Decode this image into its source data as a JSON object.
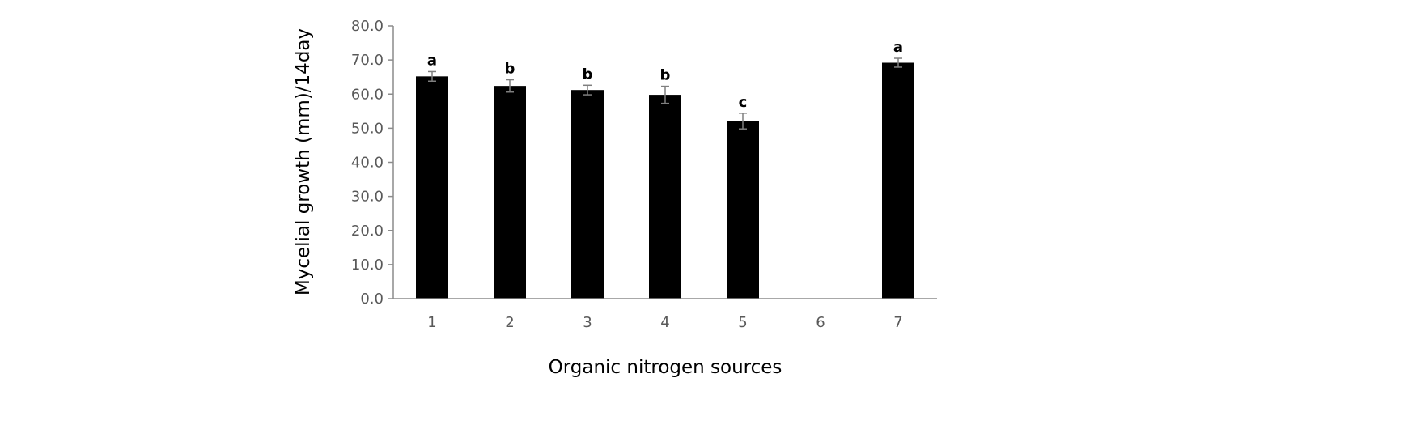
{
  "chart_data": {
    "type": "bar",
    "title": "",
    "xlabel": "Organic nitrogen sources",
    "ylabel": "Mycelial growth (mm)/14day",
    "ylim": [
      0,
      80
    ],
    "yticks": [
      "0.0",
      "10.0",
      "20.0",
      "30.0",
      "40.0",
      "50.0",
      "60.0",
      "70.0",
      "80.0"
    ],
    "categories": [
      "1",
      "2",
      "3",
      "4",
      "5",
      "6",
      "7"
    ],
    "values": [
      65.2,
      62.4,
      61.2,
      59.8,
      52.1,
      0,
      69.2
    ],
    "errors": [
      1.4,
      1.8,
      1.4,
      2.5,
      2.3,
      0,
      1.3
    ],
    "significance": [
      "a",
      "b",
      "b",
      "b",
      "c",
      "",
      "a"
    ],
    "grid": false,
    "legend": "none",
    "bar_color": "#000000"
  }
}
